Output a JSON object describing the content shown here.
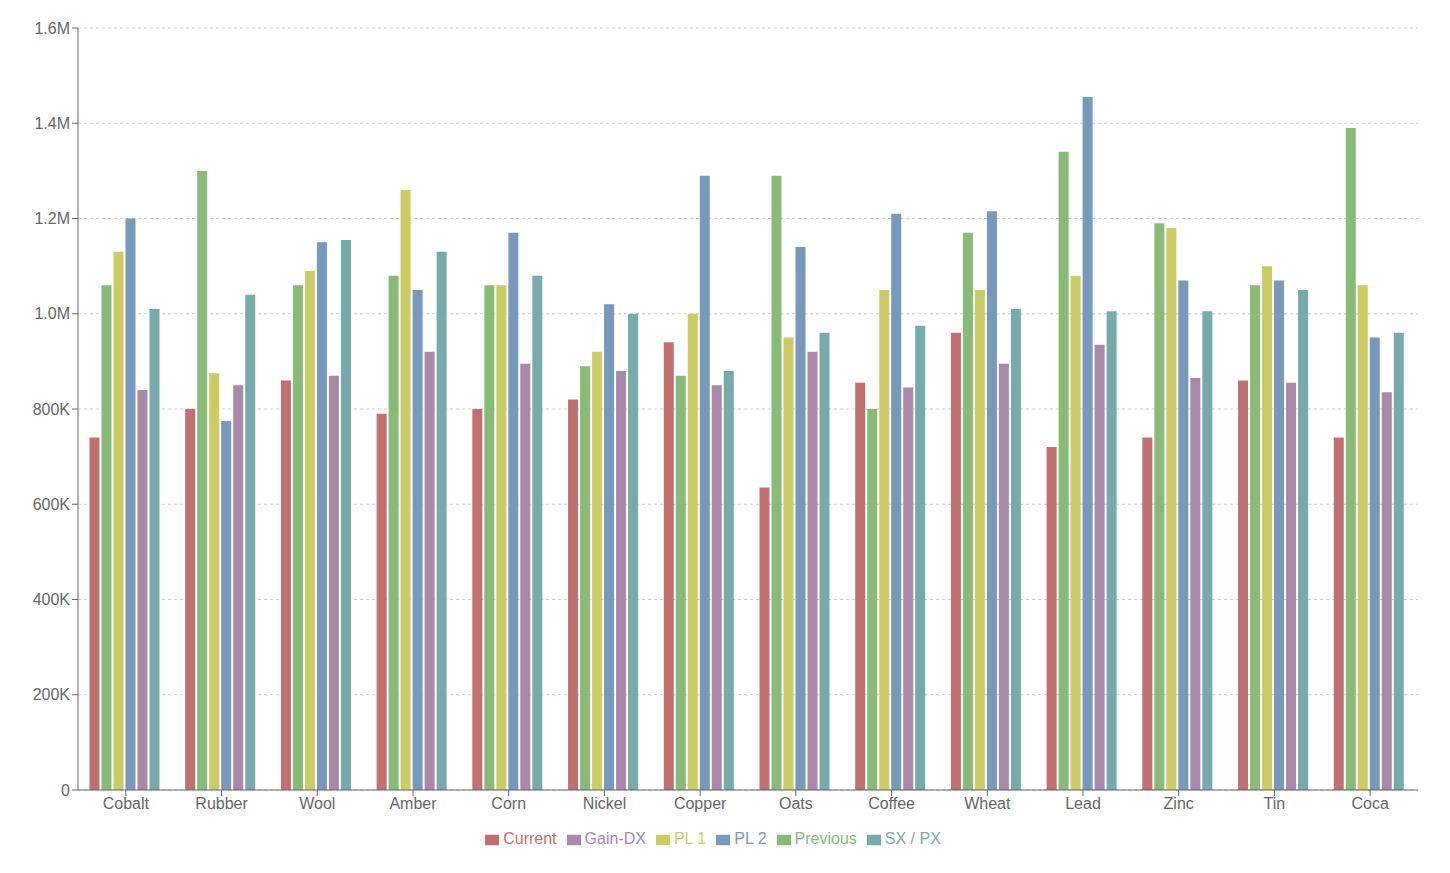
{
  "chart_data": {
    "type": "bar",
    "categories": [
      "Cobalt",
      "Rubber",
      "Wool",
      "Amber",
      "Corn",
      "Nickel",
      "Copper",
      "Oats",
      "Coffee",
      "Wheat",
      "Lead",
      "Zinc",
      "Tin",
      "Coca"
    ],
    "series": [
      {
        "name": "Current",
        "color": "#c07070",
        "values": [
          740000,
          800000,
          860000,
          790000,
          800000,
          820000,
          940000,
          635000,
          855000,
          960000,
          720000,
          740000,
          860000,
          740000
        ]
      },
      {
        "name": "Previous",
        "color": "#88bb77",
        "values": [
          1060000,
          1300000,
          1060000,
          1080000,
          1060000,
          890000,
          870000,
          1290000,
          800000,
          1170000,
          1340000,
          1190000,
          1060000,
          1390000
        ]
      },
      {
        "name": "PL 1",
        "color": "#cccc66",
        "values": [
          1130000,
          875000,
          1090000,
          1260000,
          1060000,
          920000,
          1000000,
          950000,
          1050000,
          1050000,
          1080000,
          1180000,
          1100000,
          1060000
        ]
      },
      {
        "name": "PL 2",
        "color": "#7799bb",
        "values": [
          1200000,
          775000,
          1150000,
          1050000,
          1170000,
          1020000,
          1290000,
          1140000,
          1210000,
          1215000,
          1455000,
          1070000,
          1070000,
          950000
        ]
      },
      {
        "name": "Gain-DX",
        "color": "#aa88aa",
        "values": [
          840000,
          850000,
          870000,
          920000,
          895000,
          880000,
          850000,
          920000,
          845000,
          895000,
          935000,
          865000,
          855000,
          835000
        ]
      },
      {
        "name": "SX / PX",
        "color": "#77aaaa",
        "values": [
          1010000,
          1040000,
          1155000,
          1130000,
          1080000,
          1000000,
          880000,
          960000,
          975000,
          1010000,
          1005000,
          1005000,
          1050000,
          960000
        ]
      }
    ],
    "ylim": [
      0,
      1600000
    ],
    "yticks": [
      0,
      {
        "value": 200000,
        "label": "200K"
      },
      {
        "value": 400000,
        "label": "400K"
      },
      {
        "value": 600000,
        "label": "600K"
      },
      {
        "value": 800000,
        "label": "800K"
      },
      {
        "value": 1000000,
        "label": "1.0M"
      },
      {
        "value": 1200000,
        "label": "1.2M"
      },
      {
        "value": 1400000,
        "label": "1.4M"
      },
      {
        "value": 1600000,
        "label": "1.6M"
      }
    ],
    "grid": true,
    "legend": "bottom"
  }
}
